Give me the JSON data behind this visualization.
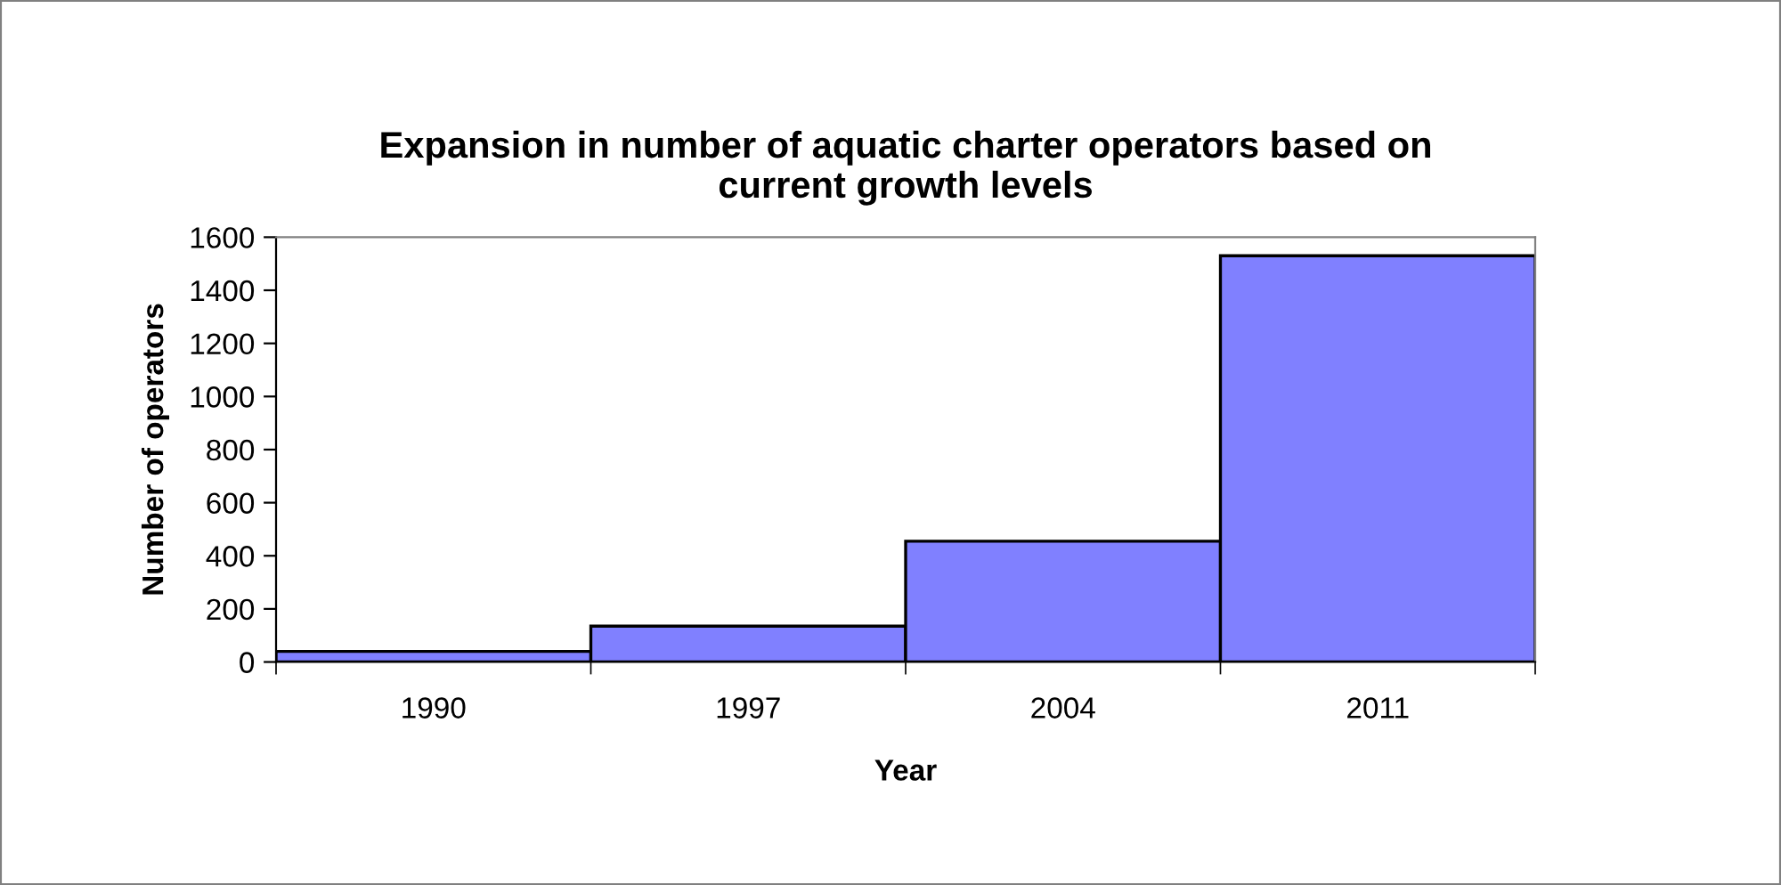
{
  "chart_data": {
    "type": "bar",
    "title": "Expansion in number of aquatic charter operators based on\ncurrent growth levels",
    "xlabel": "Year",
    "ylabel": "Number of operators",
    "categories": [
      "1990",
      "1997",
      "2004",
      "2011"
    ],
    "values": [
      40,
      135,
      455,
      1530
    ],
    "color": "#8080ff",
    "ylim": [
      0,
      1600
    ],
    "yticks": [
      0,
      200,
      400,
      600,
      800,
      1000,
      1200,
      1400,
      1600
    ],
    "grid": false,
    "legend": false
  }
}
